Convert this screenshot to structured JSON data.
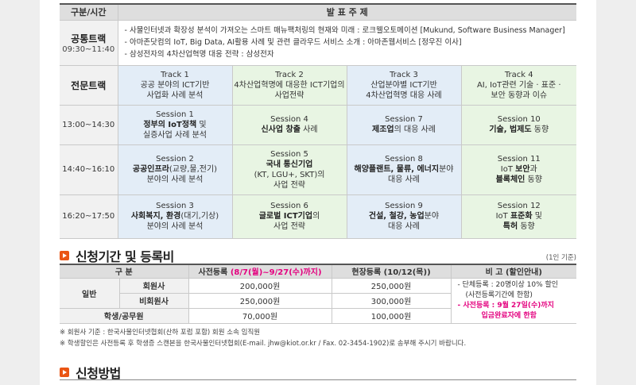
{
  "schedule": {
    "header": {
      "left": "구분/시간",
      "right": "발 표 주 제"
    },
    "common": {
      "label": "공통트랙",
      "time": "09:30~11:40",
      "items": [
        "- 사물인터넷과 확장성 분석이 가져오는 스마트 매뉴팩처링의 현재와 미래 : 로크웰오토메이션 [Mukund, Software Business Manager]",
        "- 아마존닷컴의 IoT, Big Data, AI활용 사례 및 관련 클라우드 서비스 소개 : 아마존웹서비스 [정우진 이사]",
        "- 삼성전자의 4차산업혁명 대응 전략 : 삼성전자"
      ]
    },
    "special_label": "전문트랙",
    "tracks": [
      {
        "name": "Track 1",
        "desc1": "공공 분야의 ICT기반",
        "desc2": "사업화 사례 분석"
      },
      {
        "name": "Track 2",
        "desc1": "4차산업혁명에 대응한 ICT기업의",
        "desc2": "사업전략"
      },
      {
        "name": "Track 3",
        "desc1": "산업분야별 ICT기반",
        "desc2": "4차산업혁명 대응 사례"
      },
      {
        "name": "Track 4",
        "desc1": "AI, IoT관련 기술 · 표준 ·",
        "desc2": "보안 동향과 이슈"
      }
    ],
    "rows": [
      {
        "time": "13:00~14:30",
        "sessions": [
          {
            "name": "Session 1",
            "b": "정부의 IoT정책",
            "t": " 및",
            "l3": "실증사업 사례 분석"
          },
          {
            "name": "Session 4",
            "b": "신사업 창출",
            "t": " 사례",
            "l3": ""
          },
          {
            "name": "Session 7",
            "b": "제조업",
            "t": "의 대응 사례",
            "l3": ""
          },
          {
            "name": "Session 10",
            "b": "기술, 법제도",
            "t": " 동향",
            "l3": ""
          }
        ]
      },
      {
        "time": "14:40~16:10",
        "sessions": [
          {
            "name": "Session 2",
            "b": "공공인프라",
            "t": "(교량,물,전기)",
            "l3": "분야의 사례 분석",
            "l4": ""
          },
          {
            "name": "Session 5",
            "b": "국내 통신기업",
            "t": "",
            "l3": "(KT, LGU+, SKT)의",
            "l4": "사업 전략"
          },
          {
            "name": "Session 8",
            "b": "해양플랜트, 물류, 에너지",
            "t": "분야",
            "l3": "대응 사례",
            "l4": ""
          },
          {
            "name": "Session 11",
            "b": "",
            "t": "IoT 보안과",
            "l3": "블록체인 동향",
            "l4": ""
          }
        ]
      },
      {
        "time": "16:20~17:50",
        "sessions": [
          {
            "name": "Session 3",
            "b": "사회복지, 환경",
            "t": "(대기,기상)",
            "l3": "분야의 사례 분석"
          },
          {
            "name": "Session 6",
            "b": "글로벌 ICT기업",
            "t": "의",
            "l3": "사업 전략"
          },
          {
            "name": "Session 9",
            "b": "건설, 철강, 농업",
            "t": "분야",
            "l3": "대응 사례"
          },
          {
            "name": "Session 12",
            "b": "",
            "t": "IoT 표준화 및",
            "l3": "특허 동향"
          }
        ]
      }
    ]
  },
  "registration": {
    "title": "신청기간 및 등록비",
    "unit": "(1인 기준)",
    "headers": {
      "category": "구 분",
      "pre_prefix": "사전등록 ",
      "pre_period": "(8/7(월)~9/27(수)까지)",
      "onsite": "현장등록 (10/12(목))",
      "note": "비 고 (할인안내)"
    },
    "general_label": "일반",
    "rows": [
      {
        "label": "회원사",
        "pre": "200,000원",
        "onsite": "250,000원"
      },
      {
        "label": "비회원사",
        "pre": "250,000원",
        "onsite": "300,000원"
      },
      {
        "label": "학생/공무원",
        "pre": "70,000원",
        "onsite": "100,000원"
      }
    ],
    "notes": {
      "line1": "- 단체등록 : 20명이상 10% 할인",
      "line2": "(사전등록기간에 한함)",
      "line3": "- 사전등록 : 9월 27일(수)까지",
      "line4": "입금완료자에 한함"
    },
    "footnotes": [
      "※ 회원사 기준 : 한국사물인터넷협회(산하 포럼 포함) 회원 소속 임직원",
      "※ 학생할인은 사전등록 후 학생증 스캔본을 한국사물인터넷협회(E-mail. jhw@kiot.or.kr / Fax. 02-3454-1902)로 송부해 주시기 바랍니다."
    ]
  },
  "application": {
    "title": "신청방법"
  },
  "colors": {
    "accent": "#ea5514",
    "pink": "#e4007f",
    "blue_cell": "#e3edf7",
    "green_cell": "#e8f5e3"
  }
}
